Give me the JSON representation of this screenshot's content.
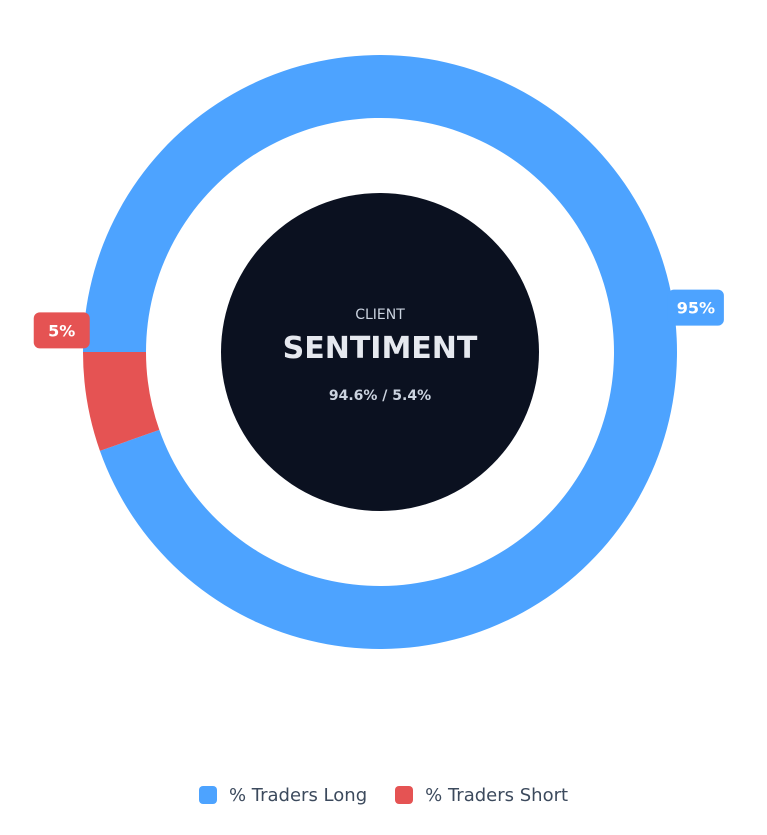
{
  "chart_data": {
    "type": "pie",
    "variant": "donut",
    "categories": [
      "% Traders Long",
      "% Traders Short"
    ],
    "values": [
      94.6,
      5.4
    ],
    "colors": [
      "#4da3ff",
      "#e55353"
    ],
    "data_labels": [
      "95%",
      "5%"
    ],
    "legend": "bottom"
  },
  "center": {
    "subtitle": "CLIENT",
    "title": "SENTIMENT",
    "ratio": "94.6% / 5.4%",
    "background": "#0b1120"
  }
}
